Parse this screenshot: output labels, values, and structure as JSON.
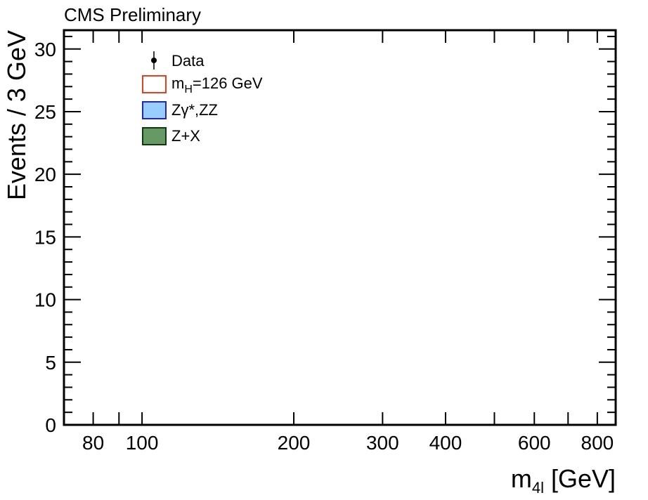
{
  "chart_data": {
    "type": "histogram",
    "header": "CMS Preliminary",
    "xlabel": "m",
    "xlabel_sub": "4l",
    "xlabel_unit": " [GeV]",
    "ylabel": "Events / 3 GeV",
    "x_scale": "log",
    "xlim": [
      70,
      870
    ],
    "ylim": [
      0,
      31.5
    ],
    "grid": false,
    "x_tick_labels": [
      {
        "value": 80,
        "label": "80"
      },
      {
        "value": 100,
        "label": "100"
      },
      {
        "value": 200,
        "label": "200"
      },
      {
        "value": 300,
        "label": "300"
      },
      {
        "value": 400,
        "label": "400"
      },
      {
        "value": 600,
        "label": "600"
      },
      {
        "value": 800,
        "label": "800"
      }
    ],
    "x_minor_ticks": [
      90,
      500,
      700
    ],
    "y_ticks": [
      {
        "value": 0,
        "label": "0"
      },
      {
        "value": 5,
        "label": "5"
      },
      {
        "value": 10,
        "label": "10"
      },
      {
        "value": 15,
        "label": "15"
      },
      {
        "value": 20,
        "label": "20"
      },
      {
        "value": 25,
        "label": "25"
      },
      {
        "value": 30,
        "label": "30"
      }
    ],
    "legend_position": "top-left",
    "legend": [
      {
        "id": "data",
        "kind": "marker",
        "label": "Data",
        "color": "#000000"
      },
      {
        "id": "signal",
        "kind": "box",
        "label": "m",
        "label_sub": "H",
        "label_rest": "=126 GeV",
        "fill": "#ffffff",
        "stroke": "#e8401c"
      },
      {
        "id": "zz",
        "kind": "box",
        "label": "Zγ*,ZZ",
        "fill": "#99ccff",
        "stroke": "#1f2ba8"
      },
      {
        "id": "zx",
        "kind": "box",
        "label": "Z+X",
        "fill": "#669966",
        "stroke": "#0b3d0b"
      }
    ],
    "series": []
  }
}
